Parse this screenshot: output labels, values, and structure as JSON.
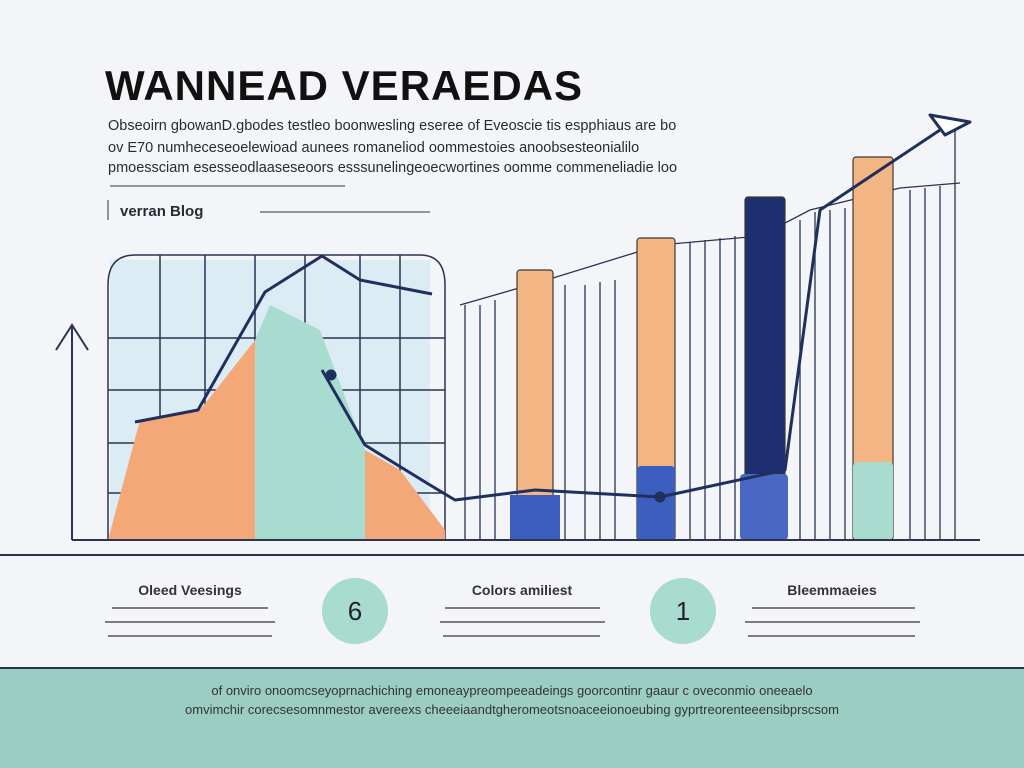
{
  "header": {
    "title": "WANNEAD VERAEDAS",
    "paragraph": [
      "Obseoirn gbowanD.gbodes testleo boonwesling eseree of Eveoscie tis espphiaus are bo",
      "ov E70 numheceseoelewioad aunees romaneliod oommestoies anoobsesteonialilo",
      "pmoessciam esesseodlaaseseoors esssunelingeoecwortines oomme commeneliadie loo"
    ],
    "label": "verran Blog"
  },
  "cards": [
    {
      "title": "Oleed Veesings"
    },
    {
      "badge": "6"
    },
    {
      "title": "Colors amiliest"
    },
    {
      "badge": "1"
    },
    {
      "title": "Bleemmaeies"
    }
  ],
  "footer": {
    "lines": [
      "of onviro onoomcseyoprnachiching emoneaypreompeeadeings goorcontinr gaaur c oveconmio oneeaelo",
      "omvimchir corecsesomnmestor avereexs cheeeiaandtgheromeotsnoaceeionoeubing gyprtreorenteeensibprscsom"
    ]
  }
}
